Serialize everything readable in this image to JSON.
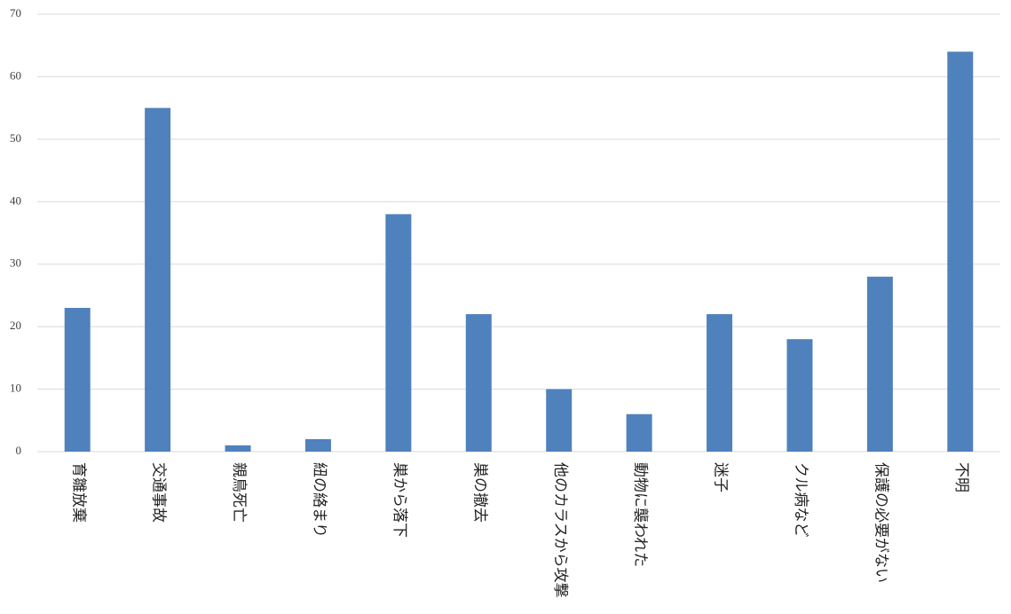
{
  "chart_data": {
    "type": "bar",
    "categories": [
      "育雛放棄",
      "交通事故",
      "親鳥死亡",
      "紐の絡まり",
      "巣から落下",
      "巣の撤去",
      "他のカラスから攻撃",
      "動物に襲われた",
      "迷子",
      "クル病など",
      "保護の必要がない",
      "不明"
    ],
    "values": [
      23,
      55,
      1,
      2,
      38,
      22,
      10,
      6,
      22,
      18,
      28,
      64
    ],
    "color": "#4f81bd",
    "ylim": [
      0,
      70
    ],
    "yticks": [
      0,
      10,
      20,
      30,
      40,
      50,
      60,
      70
    ],
    "grid": true
  }
}
